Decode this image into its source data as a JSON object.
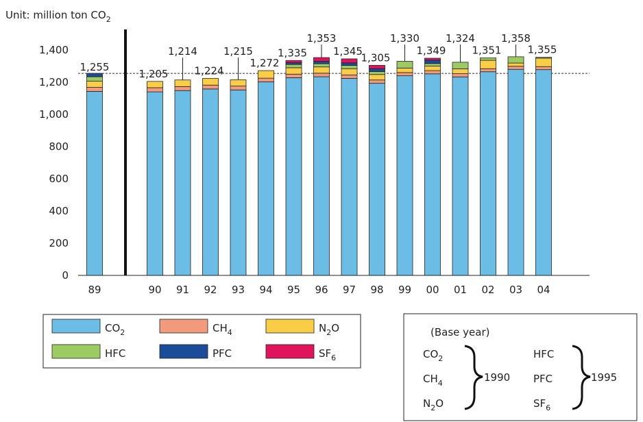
{
  "chart_data": {
    "type": "bar",
    "stacked": true,
    "unit_prefix": "Unit: million ton CO",
    "unit_sub": "2",
    "categories": [
      "89",
      "90",
      "91",
      "92",
      "93",
      "94",
      "95",
      "96",
      "97",
      "98",
      "99",
      "00",
      "01",
      "02",
      "03",
      "04"
    ],
    "ylim": [
      0,
      1400
    ],
    "yticks": [
      0,
      200,
      400,
      600,
      800,
      1000,
      1200,
      1400
    ],
    "ytick_labels": [
      "0",
      "200",
      "400",
      "600",
      "800",
      "1,000",
      "1,200",
      "1,400"
    ],
    "reference_line": 1255,
    "totals": [
      1255,
      1205,
      1214,
      1224,
      1215,
      1272,
      1335,
      1353,
      1345,
      1305,
      1330,
      1349,
      1324,
      1351,
      1358,
      1355
    ],
    "total_labels": [
      "1,255",
      "1,205",
      "1,214",
      "1,224",
      "1,215",
      "1,272",
      "1,335",
      "1,353",
      "1,345",
      "1,305",
      "1,330",
      "1,349",
      "1,324",
      "1,351",
      "1,358",
      "1,355"
    ],
    "series": [
      {
        "key": "co2",
        "values": [
          1143,
          1140,
          1148,
          1158,
          1152,
          1202,
          1228,
          1234,
          1224,
          1193,
          1240,
          1252,
          1233,
          1265,
          1280,
          1278
        ]
      },
      {
        "key": "ch4",
        "values": [
          25,
          26,
          25,
          24,
          24,
          23,
          22,
          22,
          21,
          21,
          20,
          20,
          20,
          19,
          19,
          19
        ]
      },
      {
        "key": "n2o",
        "values": [
          38,
          39,
          41,
          42,
          39,
          47,
          40,
          39,
          39,
          34,
          28,
          28,
          30,
          52,
          20,
          52
        ]
      },
      {
        "key": "hfc",
        "values": [
          28,
          0,
          0,
          0,
          0,
          0,
          20,
          20,
          20,
          18,
          42,
          16,
          41,
          15,
          39,
          6
        ]
      },
      {
        "key": "pfc",
        "values": [
          21,
          0,
          0,
          0,
          0,
          0,
          11,
          15,
          16,
          18,
          0,
          21,
          0,
          0,
          0,
          0
        ]
      },
      {
        "key": "sf6",
        "values": [
          0,
          0,
          0,
          0,
          0,
          0,
          14,
          23,
          25,
          21,
          0,
          12,
          0,
          0,
          0,
          0
        ]
      }
    ],
    "colors": {
      "co2": "#6cbde6",
      "ch4": "#f29a7c",
      "n2o": "#f9cd45",
      "hfc": "#9ccb63",
      "pfc": "#1a4c9a",
      "sf6": "#e0145c"
    },
    "legend": [
      {
        "key": "co2",
        "label": "CO",
        "sub": "2"
      },
      {
        "key": "ch4",
        "label": "CH",
        "sub": "4"
      },
      {
        "key": "n2o",
        "label": "N",
        "sub": "2",
        "after": "O"
      },
      {
        "key": "hfc",
        "label": "HFC",
        "sub": ""
      },
      {
        "key": "pfc",
        "label": "PFC",
        "sub": ""
      },
      {
        "key": "sf6",
        "label": "SF",
        "sub": "6"
      }
    ],
    "base_year": {
      "title": "(Base year)",
      "group1": {
        "items": [
          {
            "label": "CO",
            "sub": "2"
          },
          {
            "label": "CH",
            "sub": "4"
          },
          {
            "label": "N",
            "sub": "2",
            "after": "O"
          }
        ],
        "year": "1990"
      },
      "group2": {
        "items": [
          {
            "label": "HFC",
            "sub": ""
          },
          {
            "label": "PFC",
            "sub": ""
          },
          {
            "label": "SF",
            "sub": "6"
          }
        ],
        "year": "1995"
      }
    }
  }
}
